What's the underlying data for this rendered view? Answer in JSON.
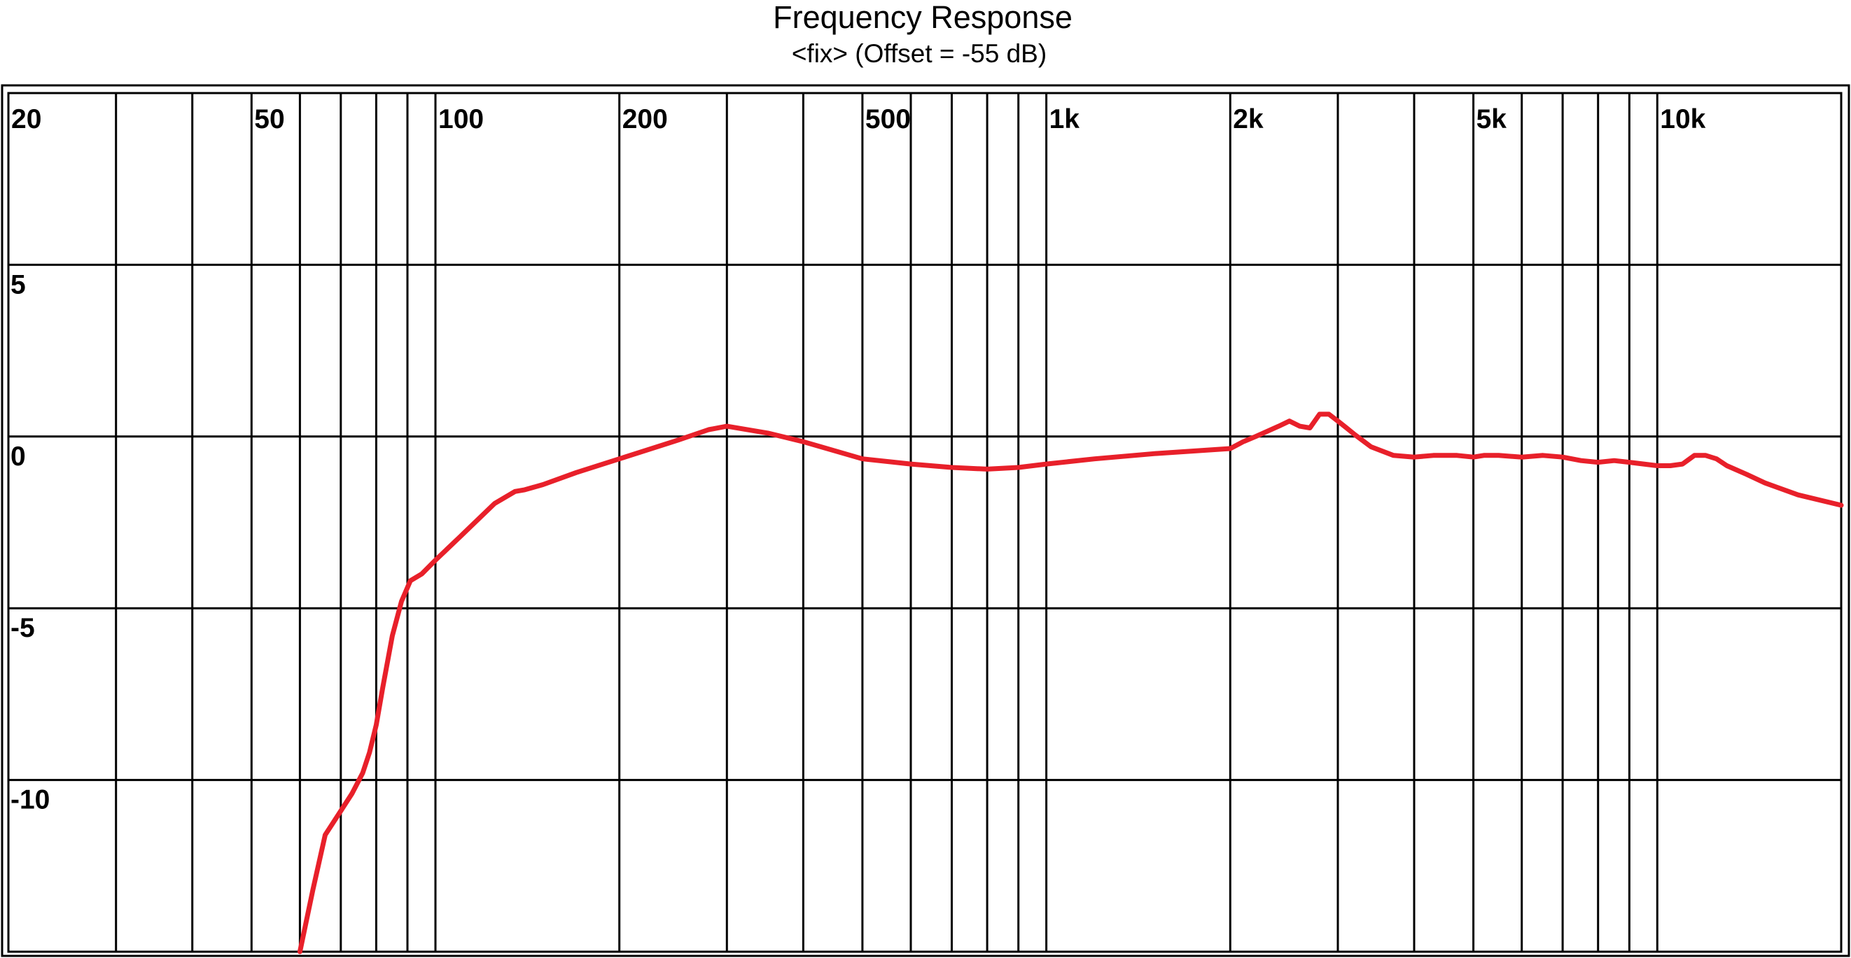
{
  "chart_data": {
    "type": "line",
    "title": "Frequency Response",
    "subtitle": "<fix> (Offset = -55 dB)",
    "xlabel": "",
    "ylabel": "",
    "x_scale": "log",
    "xlim": [
      20,
      20000
    ],
    "ylim": [
      -15,
      10
    ],
    "grid": true,
    "x_ticks": [
      20,
      30,
      40,
      50,
      60,
      70,
      80,
      90,
      100,
      200,
      300,
      400,
      500,
      600,
      700,
      800,
      900,
      1000,
      2000,
      3000,
      4000,
      5000,
      6000,
      7000,
      8000,
      9000,
      10000,
      20000
    ],
    "x_tick_labels": [
      {
        "value": 20,
        "label": "20"
      },
      {
        "value": 50,
        "label": "50"
      },
      {
        "value": 100,
        "label": "100"
      },
      {
        "value": 200,
        "label": "200"
      },
      {
        "value": 500,
        "label": "500"
      },
      {
        "value": 1000,
        "label": "1k"
      },
      {
        "value": 2000,
        "label": "2k"
      },
      {
        "value": 5000,
        "label": "5k"
      },
      {
        "value": 10000,
        "label": "10k"
      }
    ],
    "y_ticks": [
      10,
      5,
      0,
      -5,
      -10,
      -15
    ],
    "y_tick_labels": [
      {
        "value": 5,
        "label": "5"
      },
      {
        "value": 0,
        "label": "0"
      },
      {
        "value": -5,
        "label": "-5"
      },
      {
        "value": -10,
        "label": "-10"
      }
    ],
    "series": [
      {
        "color": "#e8202a",
        "x": [
          60,
          63,
          66,
          70,
          73,
          76,
          78,
          80,
          82,
          85,
          88,
          91,
          95,
          100,
          110,
          125,
          135,
          140,
          150,
          170,
          200,
          250,
          280,
          300,
          350,
          400,
          500,
          600,
          700,
          800,
          900,
          1000,
          1200,
          1500,
          2000,
          2100,
          2200,
          2400,
          2500,
          2600,
          2700,
          2800,
          2900,
          3000,
          3100,
          3200,
          3400,
          3700,
          4000,
          4300,
          4700,
          5000,
          5200,
          5500,
          6000,
          6500,
          7000,
          7500,
          8000,
          8500,
          9000,
          9500,
          10000,
          10500,
          11000,
          11500,
          12000,
          12500,
          13000,
          14000,
          15000,
          17000,
          20000
        ],
        "y": [
          -15,
          -13.2,
          -11.6,
          -10.9,
          -10.4,
          -9.8,
          -9.2,
          -8.4,
          -7.3,
          -5.8,
          -4.8,
          -4.2,
          -4.0,
          -3.6,
          -2.9,
          -1.95,
          -1.6,
          -1.55,
          -1.4,
          -1.05,
          -0.65,
          -0.1,
          0.2,
          0.3,
          0.1,
          -0.15,
          -0.65,
          -0.8,
          -0.9,
          -0.95,
          -0.9,
          -0.8,
          -0.65,
          -0.5,
          -0.35,
          -0.15,
          0.0,
          0.3,
          0.45,
          0.3,
          0.25,
          0.65,
          0.65,
          0.45,
          0.25,
          0.05,
          -0.3,
          -0.55,
          -0.6,
          -0.55,
          -0.55,
          -0.6,
          -0.55,
          -0.55,
          -0.6,
          -0.55,
          -0.6,
          -0.7,
          -0.75,
          -0.7,
          -0.75,
          -0.8,
          -0.85,
          -0.85,
          -0.8,
          -0.55,
          -0.55,
          -0.65,
          -0.85,
          -1.1,
          -1.35,
          -1.7,
          -2.0
        ]
      }
    ]
  }
}
